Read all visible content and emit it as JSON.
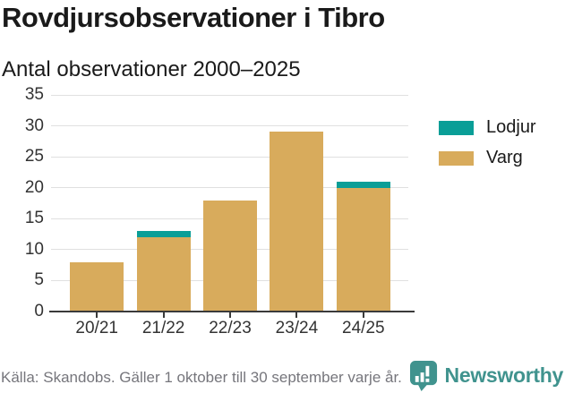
{
  "header": {
    "title": "Rovdjursobservationer i Tibro",
    "subtitle": "Antal observationer 2000–2025"
  },
  "chart_data": {
    "type": "bar",
    "stacked": true,
    "title": "Rovdjursobservationer i Tibro",
    "subtitle": "Antal observationer 2000–2025",
    "categories": [
      "20/21",
      "21/22",
      "22/23",
      "23/24",
      "24/25"
    ],
    "series": [
      {
        "name": "Varg",
        "color": "#d8ab5c",
        "values": [
          8,
          12,
          18,
          29,
          20
        ]
      },
      {
        "name": "Lodjur",
        "color": "#0a9e97",
        "values": [
          0,
          1,
          0,
          0,
          1
        ]
      }
    ],
    "totals": [
      8,
      13,
      18,
      29,
      21
    ],
    "ylim": [
      0,
      35
    ],
    "yticks": [
      0,
      5,
      10,
      15,
      20,
      25,
      30,
      35
    ],
    "grid": "horizontal",
    "legend_position": "right",
    "legend": [
      {
        "label": "Lodjur",
        "color": "#0a9e97"
      },
      {
        "label": "Varg",
        "color": "#d8ab5c"
      }
    ]
  },
  "footer": {
    "source": "Källa: Skandobs. Gäller 1 oktober till 30 september varje år.",
    "brand": "Newsworthy",
    "brand_color": "#40938e"
  },
  "colors": {
    "grid": "#e0e0e0",
    "axis": "#3a3a3a",
    "axis_text": "#333333",
    "title_text": "#1a1a1a",
    "source_text": "#76767c"
  }
}
